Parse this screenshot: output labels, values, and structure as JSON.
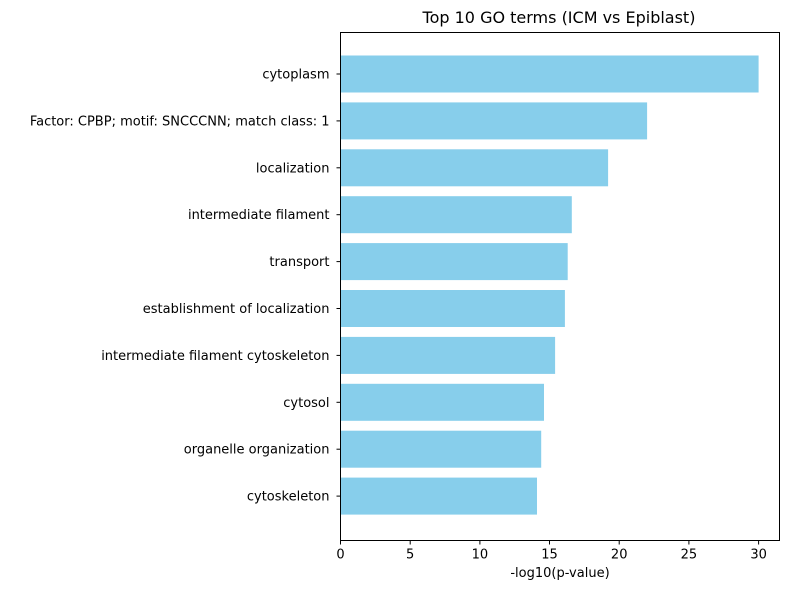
{
  "chart_data": {
    "type": "bar",
    "orientation": "horizontal",
    "title": "Top 10 GO terms (ICM vs Epiblast)",
    "xlabel": "-log10(p-value)",
    "ylabel": "",
    "xlim": [
      0,
      31.5
    ],
    "xticks": [
      0,
      5,
      10,
      15,
      20,
      25,
      30
    ],
    "grid": false,
    "bar_color": "#87CEEB",
    "categories": [
      "cytoplasm",
      "Factor: CPBP; motif: SNCCCNN; match class: 1",
      "localization",
      "intermediate filament",
      "transport",
      "establishment of localization",
      "intermediate filament cytoskeleton",
      "cytosol",
      "organelle organization",
      "cytoskeleton"
    ],
    "values": [
      30.0,
      22.0,
      19.2,
      16.6,
      16.3,
      16.1,
      15.4,
      14.6,
      14.4,
      14.1
    ]
  }
}
